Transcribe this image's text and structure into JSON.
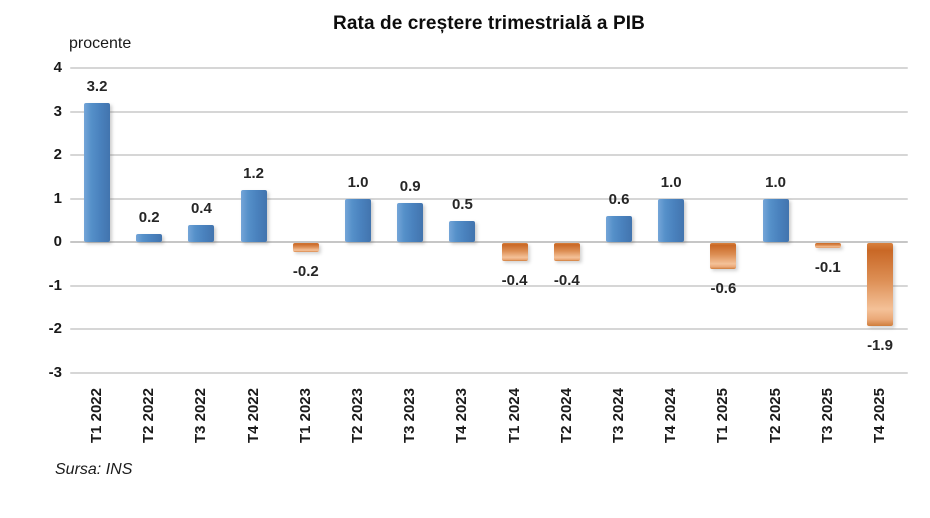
{
  "header": {
    "title": "Rata de creștere trimestrială a PIB"
  },
  "axis": {
    "unit_label": "procente"
  },
  "footer": {
    "source": "Sursa: INS"
  },
  "colors": {
    "bar_positive": "#4A82BE",
    "bar_positive_light": "#74A5D8",
    "bar_negative_dark": "#C96826",
    "bar_negative_light": "#F4C198",
    "gridline": "#D6D6D6",
    "zero_line": "#C6C6C6",
    "title_text": "#0D0D0D",
    "axis_text": "#1A1A1A",
    "value_label_text": "#262626",
    "background": "#FFFFFF"
  },
  "chart_data": {
    "type": "bar",
    "title": "Rata de creștere trimestrială a PIB",
    "ylabel": "procente",
    "xlabel": "",
    "ylim": [
      -3,
      4
    ],
    "yticks": [
      4,
      3,
      2,
      1,
      0,
      -1,
      -2,
      -3
    ],
    "ytick_labels": [
      "4",
      "3",
      "2",
      "1",
      "0",
      "-1",
      "-2",
      "-3"
    ],
    "grid": true,
    "legend": false,
    "categories": [
      "T1 2022",
      "T2 2022",
      "T3 2022",
      "T4 2022",
      "T1 2023",
      "T2 2023",
      "T3 2023",
      "T4 2023",
      "T1 2024",
      "T2 2024",
      "T3 2024",
      "T4 2024",
      "T1 2025",
      "T2 2025",
      "T3 2025",
      "T4 2025"
    ],
    "values": [
      3.2,
      0.2,
      0.4,
      1.2,
      -0.2,
      1.0,
      0.9,
      0.5,
      -0.4,
      -0.4,
      0.6,
      1.0,
      -0.6,
      1.0,
      -0.1,
      -1.9
    ],
    "value_labels": [
      "3.2",
      "0.2",
      "0.4",
      "1.2",
      "-0.2",
      "1.0",
      "0.9",
      "0.5",
      "-0.4",
      "-0.4",
      "0.6",
      "1.0",
      "-0.6",
      "1.0",
      "-0.1",
      "-1.9"
    ],
    "color_rule": "positive bars blue, negative bars orange gradient",
    "source_note": "Sursa: INS"
  }
}
